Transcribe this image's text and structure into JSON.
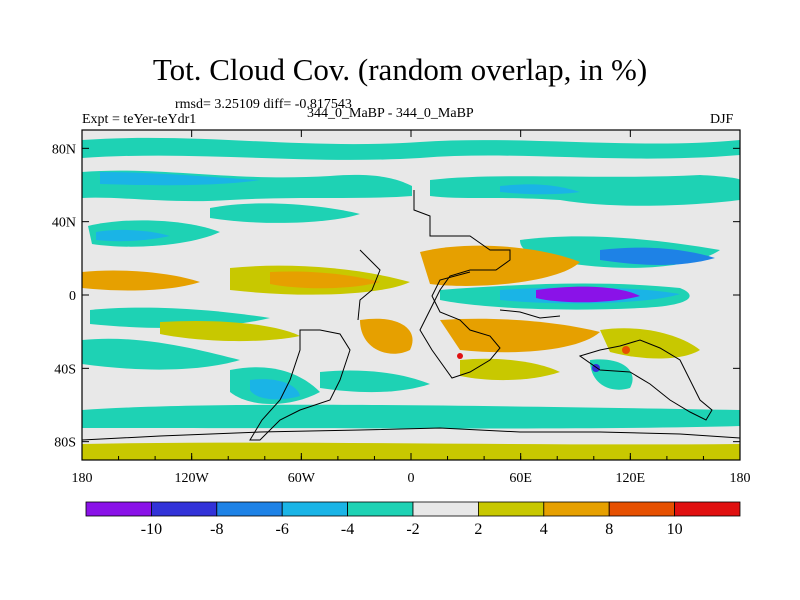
{
  "title": "Tot. Cloud Cov. (random overlap, in %)",
  "stats": "rmsd= 3.25109 diff= -0.817543",
  "expt_label": "Expt = teYer-teYdr1",
  "case_label": "344_0_MaBP - 344_0_MaBP",
  "season": "DJF",
  "map": {
    "projection": "cylindrical equidistant",
    "lon_range": [
      -180,
      180
    ],
    "lat_range": [
      -90,
      90
    ],
    "x_tick_labels": [
      "180",
      "120W",
      "60W",
      "0",
      "60E",
      "120E",
      "180"
    ],
    "y_tick_labels": [
      "80N",
      "40N",
      "0",
      "40S",
      "80S"
    ]
  },
  "colorbar": {
    "labels": [
      "-10",
      "-8",
      "-6",
      "-4",
      "-2",
      "2",
      "4",
      "8",
      "10"
    ],
    "colors": [
      "#8a12e8",
      "#3232d8",
      "#1e82e6",
      "#1ab4e6",
      "#1ed2b4",
      "#e8e8e8",
      "#c8c800",
      "#e6a000",
      "#e65000",
      "#e01010"
    ]
  }
}
